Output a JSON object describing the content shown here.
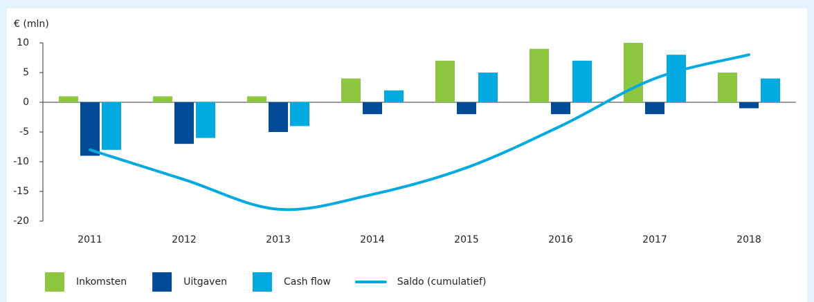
{
  "chart_data": {
    "type": "bar",
    "y_label": "€ (mln)",
    "categories": [
      "2011",
      "2012",
      "2013",
      "2014",
      "2015",
      "2016",
      "2017",
      "2018"
    ],
    "series": [
      {
        "name": "Inkomsten",
        "type": "bar",
        "color": "#8dc63f",
        "values": [
          1,
          1,
          1,
          4,
          7,
          9,
          10,
          5
        ]
      },
      {
        "name": "Uitgaven",
        "type": "bar",
        "color": "#004a97",
        "values": [
          -9,
          -7,
          -5,
          -2,
          -2,
          -2,
          -2,
          -1
        ]
      },
      {
        "name": "Cash flow",
        "type": "bar",
        "color": "#00a9e0",
        "values": [
          -8,
          -6,
          -4,
          2,
          5,
          7,
          8,
          4
        ]
      },
      {
        "name": "Saldo (cumulatief)",
        "type": "line",
        "color": "#00a9e0",
        "values": [
          -8,
          -13,
          -18,
          -15.5,
          -11,
          -4,
          4,
          8
        ]
      }
    ],
    "ylim": [
      -20,
      10
    ],
    "yticks": [
      -20,
      -15,
      -10,
      -5,
      0,
      5,
      10
    ]
  }
}
